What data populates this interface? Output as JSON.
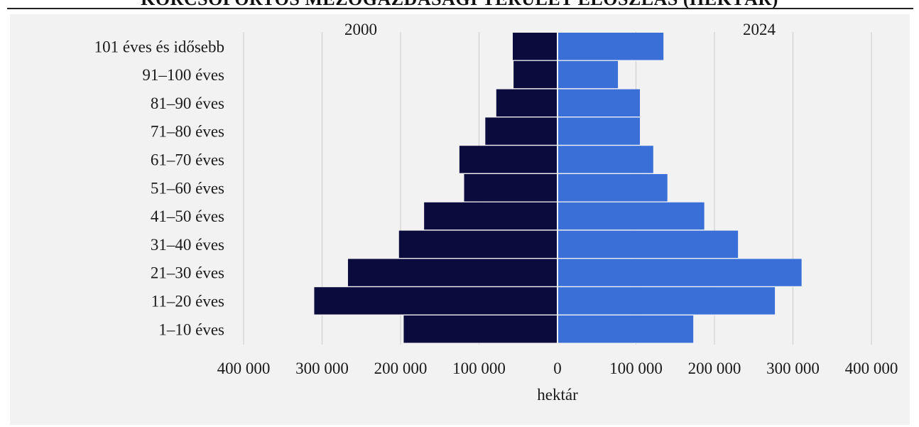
{
  "chart_data": {
    "type": "bar",
    "orientation": "horizontal",
    "layout": "population-pyramid",
    "title": "KORCSOPORTOS MEZŐGAZDASÁGI TERÜLET ELOSZLÁS (HEKTÁR)",
    "categories": [
      "101 éves és idősebb",
      "91–100 éves",
      "81–90 éves",
      "71–80 éves",
      "61–70 éves",
      "51–60 éves",
      "41–50 éves",
      "31–40 éves",
      "21–30 éves",
      "11–20 éves",
      "1–10 éves"
    ],
    "series": [
      {
        "name": "2000",
        "side": "left",
        "color": "#0b0b3d",
        "values": [
          57000,
          56000,
          78000,
          92000,
          125000,
          119000,
          170000,
          202000,
          267000,
          310000,
          196000
        ]
      },
      {
        "name": "2024",
        "side": "right",
        "color": "#3a6fd8",
        "values": [
          135000,
          77000,
          105000,
          105000,
          122000,
          140000,
          187000,
          230000,
          311000,
          277000,
          173000
        ]
      }
    ],
    "xlabel": "hektár",
    "xlim": [
      -400000,
      400000
    ],
    "ticks": [
      -400000,
      -300000,
      -200000,
      -100000,
      0,
      100000,
      200000,
      300000,
      400000
    ],
    "tick_labels": [
      "400 000",
      "300 000",
      "200 000",
      "100 000",
      "0",
      "100 000",
      "200 000",
      "300 000",
      "400 000"
    ],
    "grid": true,
    "legend": "series names above each side"
  }
}
